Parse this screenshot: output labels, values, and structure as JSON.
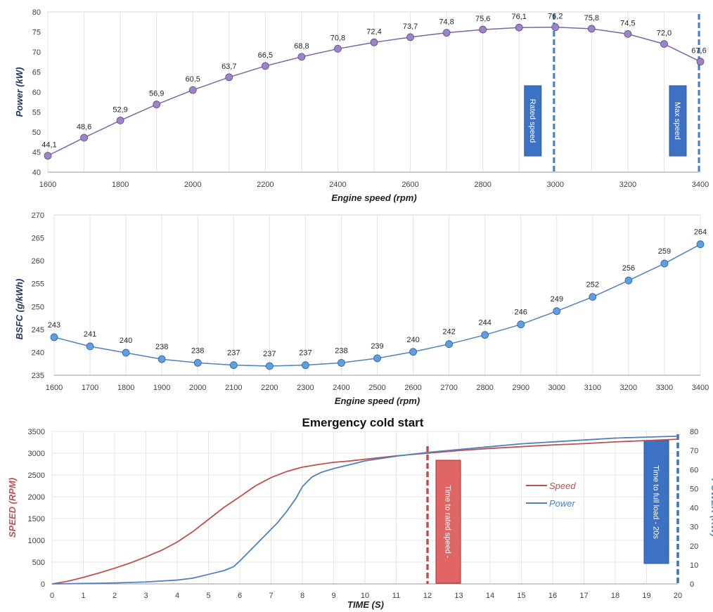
{
  "chart_data": [
    {
      "type": "line",
      "title": "",
      "xlabel": "Engine speed (rpm)",
      "ylabel": "Power (kW)",
      "xlim": [
        1600,
        3400
      ],
      "ylim": [
        40,
        80
      ],
      "x_ticks": [
        1600,
        1800,
        2000,
        2200,
        2400,
        2600,
        2800,
        3000,
        3200,
        3400
      ],
      "y_ticks": [
        40,
        45,
        50,
        55,
        60,
        65,
        70,
        75,
        80
      ],
      "grid": "vertical",
      "series": [
        {
          "x": [
            1600,
            1700,
            1800,
            1900,
            2000,
            2100,
            2200,
            2300,
            2400,
            2500,
            2600,
            2700,
            2800,
            2900,
            3000,
            3100,
            3200,
            3300,
            3400
          ],
          "values": [
            44.1,
            48.6,
            52.9,
            56.9,
            60.5,
            63.7,
            66.5,
            68.8,
            70.8,
            72.4,
            73.7,
            74.8,
            75.6,
            76.1,
            76.2,
            75.8,
            74.5,
            72.0,
            67.6
          ],
          "labels": [
            "44,1",
            "48,6",
            "52,9",
            "56,9",
            "60,5",
            "63,7",
            "66,5",
            "68,8",
            "70,8",
            "72,4",
            "73,7",
            "74,8",
            "75,6",
            "76,1",
            "76,2",
            "75,8",
            "74,5",
            "72,0",
            "67,6"
          ],
          "color": "#8064a2",
          "marker_color": "#9b84c7"
        }
      ],
      "annotations": [
        {
          "text": "Rated speed",
          "x": 3000
        },
        {
          "text": "Max speed",
          "x": 3400
        }
      ],
      "marker_line_color": "#4a7ec0",
      "box_color": "#3d72c2"
    },
    {
      "type": "line",
      "title": "",
      "xlabel": "Engine speed (rpm)",
      "ylabel": "BSFC (g/kWh)",
      "xlim": [
        1600,
        3400
      ],
      "ylim": [
        235,
        270
      ],
      "x_ticks": [
        1600,
        1700,
        1800,
        1900,
        2000,
        2100,
        2200,
        2300,
        2400,
        2500,
        2600,
        2700,
        2800,
        2900,
        3000,
        3100,
        3200,
        3300,
        3400
      ],
      "y_ticks": [
        235,
        240,
        245,
        250,
        255,
        260,
        265,
        270
      ],
      "grid": "vertical",
      "series": [
        {
          "x": [
            1600,
            1700,
            1800,
            1900,
            2000,
            2100,
            2200,
            2300,
            2400,
            2500,
            2600,
            2700,
            2800,
            2900,
            3000,
            3100,
            3200,
            3300,
            3400
          ],
          "values": [
            243.3,
            241.3,
            239.9,
            238.5,
            237.7,
            237.2,
            237.0,
            237.2,
            237.7,
            238.7,
            240.1,
            241.8,
            243.8,
            246.1,
            249.0,
            252.1,
            255.7,
            259.4,
            263.6
          ],
          "labels": [
            "243",
            "241",
            "240",
            "238",
            "238",
            "237",
            "237",
            "237",
            "238",
            "239",
            "240",
            "242",
            "244",
            "246",
            "249",
            "252",
            "256",
            "259",
            "264"
          ],
          "color": "#4f81bd",
          "marker_color": "#5e9fe0"
        }
      ]
    },
    {
      "type": "line",
      "title": "Emergency cold start",
      "xlabel": "TIME (S)",
      "ylabel": "SPEED (RPM)",
      "ylabel_right": "POWER (KW)",
      "xlim": [
        0,
        20
      ],
      "ylim": [
        0,
        3500
      ],
      "ylim_right": [
        0,
        80
      ],
      "x_ticks": [
        0,
        1,
        2,
        3,
        4,
        5,
        6,
        7,
        8,
        9,
        10,
        11,
        12,
        13,
        14,
        15,
        16,
        17,
        18,
        19,
        20
      ],
      "y_ticks": [
        0,
        500,
        1000,
        1500,
        2000,
        2500,
        3000,
        3500
      ],
      "y_ticks_right": [
        0,
        10,
        20,
        30,
        40,
        50,
        60,
        70,
        80
      ],
      "grid": "both",
      "legend": "center-right",
      "series": [
        {
          "name": "Speed",
          "axis": "left",
          "color": "#c0504d",
          "x": [
            0,
            0.5,
            1,
            1.5,
            2,
            2.5,
            3,
            3.5,
            4,
            4.5,
            5,
            5.5,
            6,
            6.5,
            7,
            7.5,
            8,
            8.5,
            9,
            9.5,
            10,
            11,
            12,
            13,
            14,
            15,
            16,
            17,
            18,
            19,
            20
          ],
          "values": [
            0,
            60,
            150,
            250,
            360,
            480,
            620,
            770,
            960,
            1200,
            1480,
            1760,
            2000,
            2250,
            2440,
            2580,
            2680,
            2740,
            2790,
            2820,
            2860,
            2940,
            3000,
            3060,
            3110,
            3150,
            3190,
            3220,
            3260,
            3290,
            3320
          ]
        },
        {
          "name": "Power",
          "axis": "right",
          "color": "#4f81bd",
          "x": [
            0,
            1,
            2,
            3,
            4,
            4.5,
            5,
            5.5,
            5.8,
            6,
            6.3,
            6.6,
            6.9,
            7.2,
            7.5,
            7.8,
            8,
            8.3,
            8.6,
            9,
            9.5,
            10,
            11,
            12,
            13,
            14,
            15,
            16,
            17,
            18,
            19,
            20
          ],
          "values": [
            0,
            0.2,
            0.5,
            1,
            2,
            3,
            5,
            7,
            9,
            12,
            17,
            22,
            27,
            32,
            38,
            45,
            51,
            56,
            58.5,
            60.5,
            62.5,
            64.5,
            67,
            69,
            70.5,
            72,
            73.5,
            74.5,
            75.5,
            76.5,
            77,
            77.5
          ]
        }
      ],
      "annotations": [
        {
          "text": "Time to rated speed -",
          "x": 12,
          "color": "#c0504d"
        },
        {
          "text": "Time to full load - 20s",
          "x": 20,
          "color": "#3d72c2"
        }
      ]
    }
  ]
}
